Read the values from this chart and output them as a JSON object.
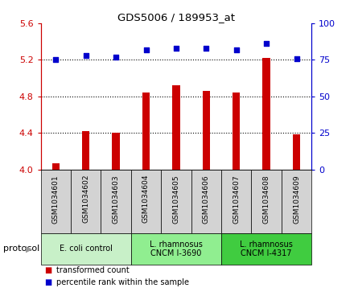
{
  "title": "GDS5006 / 189953_at",
  "samples": [
    "GSM1034601",
    "GSM1034602",
    "GSM1034603",
    "GSM1034604",
    "GSM1034605",
    "GSM1034606",
    "GSM1034607",
    "GSM1034608",
    "GSM1034609"
  ],
  "transformed_count": [
    4.07,
    4.42,
    4.4,
    4.84,
    4.92,
    4.86,
    4.84,
    5.22,
    4.38
  ],
  "percentile_rank": [
    75,
    78,
    77,
    82,
    83,
    83,
    82,
    86,
    76
  ],
  "ylim_left": [
    4.0,
    5.6
  ],
  "ylim_right": [
    0,
    100
  ],
  "yticks_left": [
    4.0,
    4.4,
    4.8,
    5.2,
    5.6
  ],
  "yticks_right": [
    0,
    25,
    50,
    75,
    100
  ],
  "groups": [
    {
      "label": "E. coli control",
      "start": 0,
      "end": 3,
      "color": "#c8f0c8"
    },
    {
      "label": "L. rhamnosus\nCNCM I-3690",
      "start": 3,
      "end": 6,
      "color": "#90ee90"
    },
    {
      "label": "L. rhamnosus\nCNCM I-4317",
      "start": 6,
      "end": 9,
      "color": "#40cc40"
    }
  ],
  "bar_color": "#cc0000",
  "dot_color": "#0000cc",
  "grid_color": "#000000",
  "background_color": "#ffffff",
  "tick_color_left": "#cc0000",
  "tick_color_right": "#0000cc",
  "protocol_label": "protocol",
  "legend_items": [
    {
      "label": "transformed count",
      "color": "#cc0000"
    },
    {
      "label": "percentile rank within the sample",
      "color": "#0000cc"
    }
  ],
  "sample_box_color": "#d3d3d3"
}
